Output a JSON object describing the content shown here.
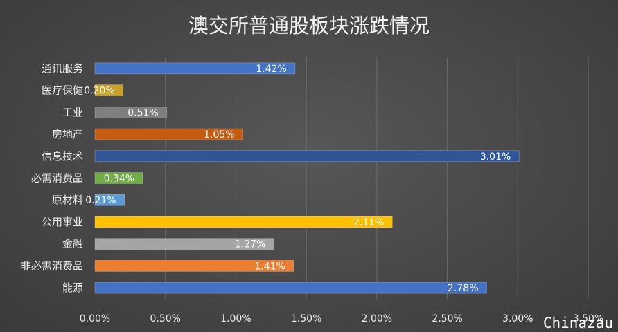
{
  "chart_data": {
    "type": "bar",
    "orientation": "horizontal",
    "title": "澳交所普通股板块涨跌情况",
    "categories": [
      "通讯服务",
      "医疗保健",
      "工业",
      "房地产",
      "信息技术",
      "必需消费品",
      "原材料",
      "公用事业",
      "金融",
      "非必需消费品",
      "能源"
    ],
    "values": [
      1.42,
      0.2,
      0.51,
      1.05,
      3.01,
      0.34,
      0.21,
      2.11,
      1.27,
      1.41,
      2.78
    ],
    "data_labels": [
      "1.42%",
      "0.20%",
      "0.51%",
      "1.05%",
      "3.01%",
      "0.34%",
      "0.21%",
      "2.11%",
      "1.27%",
      "1.41%",
      "2.78%"
    ],
    "colors": [
      "#4472c4",
      "#c9a227",
      "#7f7f7f",
      "#c55a11",
      "#2f5597",
      "#70ad47",
      "#5b9bd5",
      "#ffc000",
      "#a5a5a5",
      "#ed7d31",
      "#4472c4"
    ],
    "x_ticks": [
      0,
      0.5,
      1.0,
      1.5,
      2.0,
      2.5,
      3.0,
      3.5
    ],
    "x_tick_labels": [
      "0.00%",
      "0.50%",
      "1.00%",
      "1.50%",
      "2.00%",
      "2.50%",
      "3.00%",
      "3.50%"
    ],
    "xlim": [
      0,
      3.5
    ],
    "xlabel": "",
    "ylabel": "",
    "grid": true,
    "legend": "none"
  },
  "watermark": "Chinazau"
}
